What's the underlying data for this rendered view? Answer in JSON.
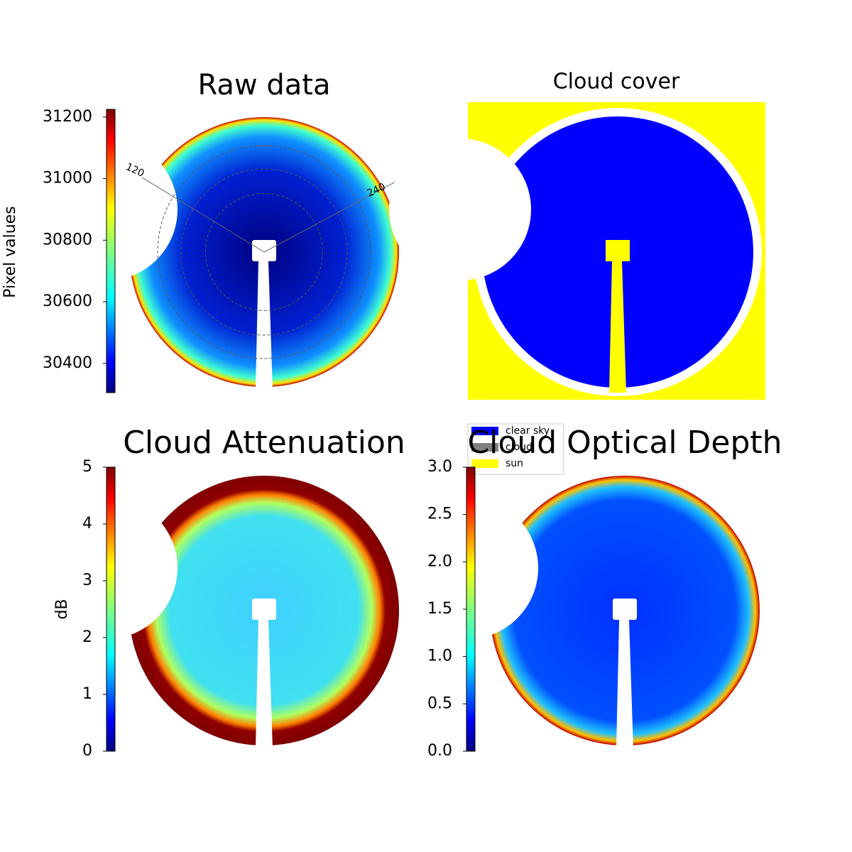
{
  "chart_data": [
    {
      "type": "image",
      "title": "Raw data",
      "colorbar_label": "Pixel values",
      "colormap": "jet",
      "ylim": [
        30305,
        31225
      ],
      "yticks": [
        30400,
        30600,
        30800,
        31000,
        31200
      ],
      "annotations": [
        "120",
        "240"
      ]
    },
    {
      "type": "image",
      "title": "Cloud cover",
      "legend": {
        "categories": [
          "clear sky",
          "cloud",
          "sun"
        ],
        "colors": [
          "#0000ff",
          "#808080",
          "#ffff00"
        ]
      }
    },
    {
      "type": "image",
      "title": "Cloud Attenuation",
      "colorbar_label": "dB",
      "colormap": "jet",
      "ylim": [
        0,
        5
      ],
      "yticks": [
        0,
        1,
        2,
        3,
        4,
        5
      ]
    },
    {
      "type": "image",
      "title": "Cloud Optical Depth",
      "colormap": "jet",
      "ylim": [
        0,
        3
      ],
      "yticks": [
        {
          "value": 0,
          "label": "0.0"
        },
        0.5,
        {
          "value": 1,
          "label": "1.0"
        },
        1.5,
        {
          "value": 2,
          "label": "2.0"
        },
        2.5,
        {
          "value": 3,
          "label": "3.0"
        }
      ]
    }
  ]
}
